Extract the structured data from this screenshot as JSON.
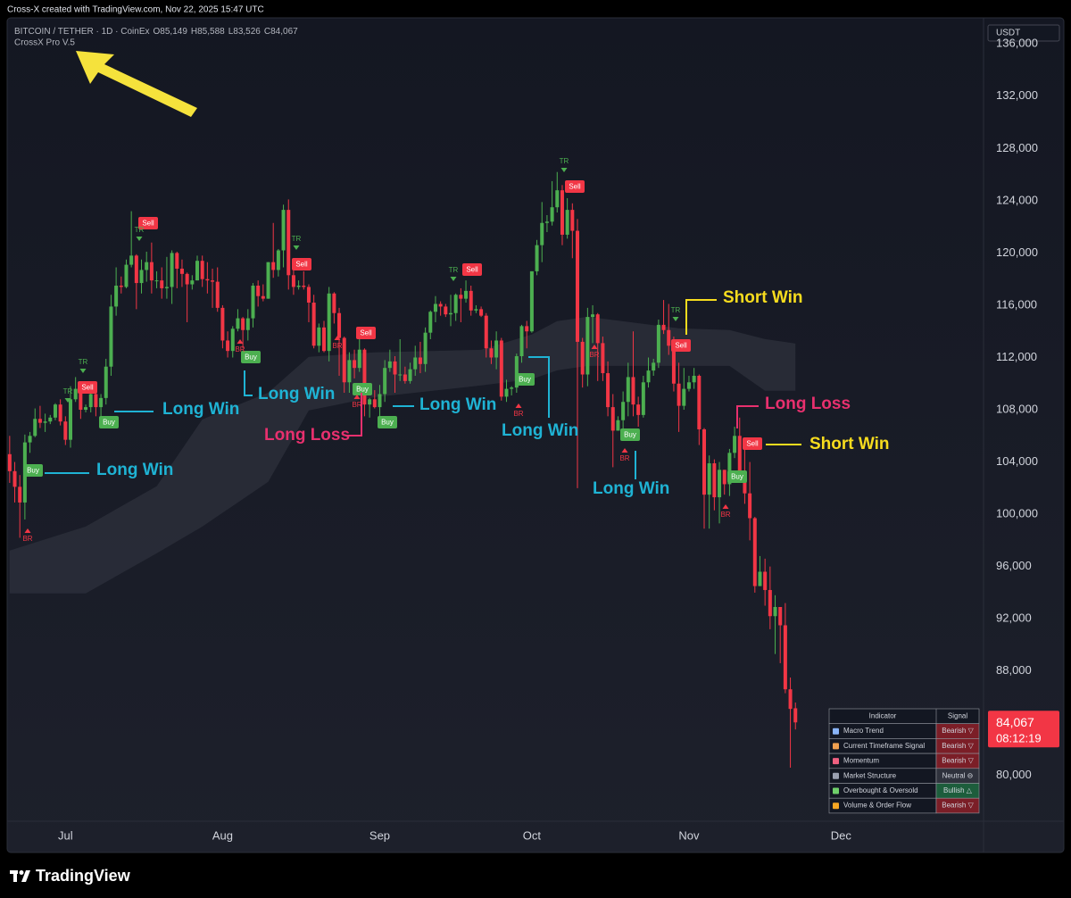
{
  "top_bar": "Cross-X created with TradingView.com, Nov 22, 2025 15:47 UTC",
  "header": {
    "symbol": "BITCOIN / TETHER · 1D · CoinEx",
    "ohlc": [
      {
        "key": "O",
        "value": "85,149"
      },
      {
        "key": "H",
        "value": "85,588"
      },
      {
        "key": "L",
        "value": "83,526"
      },
      {
        "key": "C",
        "value": "84,067"
      }
    ],
    "indicator": "CrossX Pro V.5"
  },
  "chart_data": {
    "type": "candlestick",
    "currency": "USDT",
    "up_color": "#4caf50",
    "down_color": "#f23645",
    "grid": false,
    "ylim": [
      76500,
      138000
    ],
    "yticks": [
      {
        "value": 80000,
        "label": "80,000"
      },
      {
        "value": 84000,
        "label": "84,000"
      },
      {
        "value": 88000,
        "label": "88,000"
      },
      {
        "value": 92000,
        "label": "92,000"
      },
      {
        "value": 96000,
        "label": "96,000"
      },
      {
        "value": 100000,
        "label": "100,000"
      },
      {
        "value": 104000,
        "label": "104,000"
      },
      {
        "value": 108000,
        "label": "108,000"
      },
      {
        "value": 112000,
        "label": "112,000"
      },
      {
        "value": 116000,
        "label": "116,000"
      },
      {
        "value": 120000,
        "label": "120,000"
      },
      {
        "value": 124000,
        "label": "124,000"
      },
      {
        "value": 128000,
        "label": "128,000"
      },
      {
        "value": 132000,
        "label": "132,000"
      },
      {
        "value": 136000,
        "label": "136,000"
      }
    ],
    "categories": [
      null,
      null,
      null,
      null,
      null,
      null,
      null,
      null,
      null,
      null,
      null,
      "Jul",
      null,
      null,
      null,
      null,
      null,
      null,
      null,
      null,
      null,
      null,
      null,
      null,
      null,
      null,
      null,
      null,
      null,
      null,
      null,
      null,
      null,
      null,
      null,
      null,
      null,
      null,
      null,
      null,
      null,
      null,
      "Aug",
      null,
      null,
      null,
      null,
      null,
      null,
      null,
      null,
      null,
      null,
      null,
      null,
      null,
      null,
      null,
      null,
      null,
      null,
      null,
      null,
      null,
      null,
      null,
      null,
      null,
      null,
      null,
      null,
      null,
      null,
      "Sep",
      null,
      null,
      null,
      null,
      null,
      null,
      null,
      null,
      null,
      null,
      null,
      null,
      null,
      null,
      null,
      null,
      null,
      null,
      null,
      null,
      null,
      null,
      null,
      null,
      null,
      null,
      null,
      null,
      null,
      "Oct",
      null,
      null,
      null,
      null,
      null,
      null,
      null,
      null,
      null,
      null,
      null,
      null,
      null,
      null,
      null,
      null,
      null,
      null,
      null,
      null,
      null,
      null,
      null,
      null,
      null,
      null,
      null,
      null,
      null,
      null,
      "Nov",
      null,
      null,
      null,
      null,
      null,
      null,
      null,
      null,
      null,
      null,
      null,
      null,
      null,
      null,
      null,
      null,
      null,
      null,
      null,
      null,
      null,
      null,
      null,
      null,
      null,
      null,
      null,
      null,
      null,
      "Dec"
    ],
    "open": [
      104600,
      103300,
      102100,
      100900,
      105500,
      106000,
      107300,
      107000,
      107100,
      107400,
      108400,
      107100,
      105700,
      108800,
      109600,
      108000,
      108200,
      109200,
      108200,
      108900,
      111300,
      115900,
      117500,
      117400,
      119100,
      119800,
      117700,
      118700,
      119300,
      117900,
      117900,
      117300,
      117400,
      120000,
      118800,
      118400,
      117600,
      117900,
      119400,
      118000,
      117900,
      117800,
      115800,
      113300,
      112500,
      114200,
      115000,
      114100,
      115000,
      117500,
      116700,
      116500,
      119300,
      118700,
      120200,
      123300,
      118300,
      117400,
      117500,
      117400,
      116200,
      112900,
      114300,
      112500,
      116900,
      115400,
      113500,
      110100,
      111800,
      111200,
      112600,
      108400,
      108800,
      108200,
      109200,
      111200,
      111700,
      110700,
      110700,
      110200,
      111100,
      112000,
      111500,
      113900,
      115500,
      116100,
      115900,
      115300,
      115400,
      116800,
      116500,
      117100,
      115600,
      115700,
      115200,
      112700,
      112000,
      113300,
      109000,
      109600,
      109700,
      112100,
      114400,
      114000,
      118600,
      120600,
      122300,
      122400,
      123500,
      124800,
      121400,
      123300,
      121700,
      113200,
      110700,
      115100,
      115300,
      113100,
      110800,
      108200,
      106400,
      107200,
      108600,
      110500,
      108400,
      107600,
      110100,
      111000,
      111600,
      114500,
      114100,
      112900,
      110000,
      108300,
      109600,
      110100,
      110600,
      106500,
      101500,
      103900,
      101300,
      103400,
      102300,
      104700,
      106000,
      103000,
      101600,
      99700,
      94500,
      95600,
      94200,
      92200,
      92900,
      91500,
      86600,
      85149,
      null,
      null,
      null,
      null,
      null,
      null,
      null,
      null,
      null
    ],
    "high": [
      106000,
      104000,
      103000,
      106100,
      106300,
      108100,
      108300,
      107700,
      107600,
      108500,
      108800,
      107500,
      109800,
      110500,
      109800,
      108400,
      109700,
      109700,
      109200,
      111900,
      116800,
      118900,
      118200,
      119500,
      123200,
      119900,
      119500,
      120100,
      120800,
      118600,
      118900,
      119700,
      120200,
      120100,
      119500,
      118500,
      118300,
      119800,
      119800,
      119300,
      118800,
      118900,
      116000,
      114000,
      114400,
      115700,
      115100,
      115700,
      117700,
      117900,
      117600,
      119300,
      122300,
      120300,
      123700,
      124100,
      119200,
      117900,
      118600,
      117600,
      116800,
      114600,
      114800,
      117400,
      117000,
      115800,
      113600,
      112400,
      112600,
      113500,
      112700,
      108900,
      109500,
      109900,
      111800,
      112600,
      112100,
      113400,
      111300,
      111600,
      112900,
      113200,
      114300,
      115600,
      116700,
      116300,
      116100,
      116800,
      116900,
      117300,
      117900,
      117500,
      116000,
      115900,
      115400,
      113300,
      114000,
      113500,
      110300,
      109800,
      112300,
      114500,
      114800,
      118600,
      121000,
      123900,
      122900,
      125500,
      126200,
      125200,
      124200,
      123800,
      122600,
      113500,
      115800,
      116000,
      115400,
      113600,
      111700,
      109200,
      107500,
      109400,
      111600,
      114000,
      109000,
      110600,
      112000,
      111900,
      114900,
      116400,
      116100,
      113600,
      111600,
      111200,
      110600,
      111200,
      110700,
      106600,
      104500,
      104200,
      104000,
      103400,
      105000,
      106700,
      107400,
      105300,
      104000,
      99800,
      96800,
      96600,
      96000,
      93800,
      92900,
      93200,
      87500,
      85588,
      null,
      null,
      null,
      null,
      null,
      null,
      null,
      null,
      null
    ],
    "low": [
      102400,
      100900,
      98200,
      99600,
      104700,
      105900,
      106600,
      106300,
      106900,
      107200,
      106800,
      105300,
      105100,
      108600,
      107300,
      107800,
      107800,
      107500,
      107500,
      108400,
      110600,
      115200,
      116900,
      117300,
      118900,
      115700,
      116900,
      117800,
      116900,
      117300,
      116500,
      116500,
      116100,
      117300,
      117400,
      114700,
      117200,
      117900,
      117400,
      116900,
      115800,
      115500,
      112700,
      112000,
      112000,
      114000,
      112700,
      113300,
      114300,
      115900,
      116300,
      116500,
      118100,
      118200,
      118900,
      117200,
      116800,
      117200,
      117200,
      114700,
      112700,
      112400,
      112400,
      111700,
      114600,
      110600,
      109300,
      109300,
      110400,
      110900,
      107500,
      107400,
      108100,
      107300,
      108600,
      110900,
      109300,
      110200,
      110000,
      110000,
      110600,
      110800,
      110900,
      113400,
      114700,
      115200,
      115100,
      114400,
      114800,
      114700,
      116200,
      115200,
      115400,
      115100,
      112000,
      111500,
      111100,
      108700,
      108600,
      109100,
      109300,
      111600,
      112700,
      113900,
      118300,
      119300,
      121600,
      122100,
      123100,
      120600,
      121100,
      119600,
      102000,
      109700,
      109800,
      113100,
      110200,
      110200,
      107500,
      103600,
      106400,
      106100,
      107500,
      107500,
      106700,
      107400,
      109700,
      110600,
      111200,
      113800,
      112200,
      109400,
      106300,
      108000,
      109400,
      109600,
      105300,
      98900,
      98900,
      100300,
      99300,
      101500,
      101400,
      104300,
      102500,
      100800,
      98000,
      94000,
      94500,
      93000,
      91200,
      89300,
      88600,
      86300,
      80600,
      83526,
      null,
      null,
      null,
      null,
      null,
      null,
      null,
      null,
      null
    ],
    "close": [
      103300,
      102100,
      100900,
      105500,
      106000,
      107300,
      107000,
      107100,
      107400,
      108400,
      107100,
      105700,
      108800,
      109600,
      108000,
      108200,
      109200,
      108200,
      108900,
      111300,
      115900,
      117500,
      117400,
      119100,
      119800,
      117700,
      118700,
      119300,
      117900,
      117900,
      117300,
      117400,
      120000,
      118800,
      118400,
      117600,
      117900,
      119400,
      118000,
      117900,
      117800,
      115800,
      113300,
      112500,
      114200,
      115000,
      114100,
      115000,
      117500,
      116700,
      116500,
      119300,
      118700,
      120200,
      123300,
      118300,
      117400,
      117500,
      117400,
      116200,
      112900,
      114300,
      112500,
      116900,
      115400,
      113500,
      110100,
      111800,
      111200,
      112600,
      108400,
      108800,
      108200,
      109200,
      111200,
      111700,
      110700,
      110700,
      110200,
      111100,
      112000,
      111500,
      113900,
      115500,
      116100,
      115900,
      115300,
      115400,
      116800,
      116500,
      117100,
      115600,
      115700,
      115200,
      112700,
      112000,
      113300,
      109000,
      109600,
      109700,
      112100,
      114400,
      114000,
      118600,
      120600,
      122300,
      122400,
      123500,
      124800,
      121400,
      123300,
      121700,
      113200,
      110700,
      115100,
      115300,
      113100,
      110800,
      108200,
      106400,
      107200,
      108600,
      110500,
      108400,
      107600,
      110100,
      111000,
      111600,
      114500,
      114100,
      112900,
      110000,
      108300,
      109600,
      110100,
      110600,
      106500,
      101500,
      103900,
      101300,
      103400,
      102300,
      104700,
      106000,
      103000,
      101600,
      99700,
      94500,
      95600,
      94200,
      92200,
      92900,
      91500,
      86600,
      85100,
      84067,
      null,
      null,
      null,
      null,
      null,
      null,
      null,
      null,
      null
    ],
    "cloud": {
      "color": "#2a2e39",
      "x": [
        0,
        15,
        29,
        38,
        51,
        59,
        72,
        93,
        103,
        108,
        114,
        132,
        142,
        149,
        155
      ],
      "upper": [
        97220,
        99060,
        102140,
        107260,
        109310,
        112050,
        112390,
        112590,
        113760,
        114780,
        115120,
        114230,
        114100,
        113410,
        113070
      ],
      "lower": [
        93940,
        93940,
        97010,
        99060,
        102480,
        107950,
        108970,
        109860,
        110340,
        111020,
        111360,
        111360,
        111360,
        109450,
        109450
      ]
    },
    "last_price": {
      "value": 84067,
      "label": "84,067"
    },
    "countdown": "08:12:19",
    "signals": [
      "Buy",
      "Buy",
      "Buy",
      "Buy",
      "Buy",
      "Buy",
      "Buy",
      "Buy",
      "Sell",
      "Sell",
      "Sell",
      "Sell",
      "Sell",
      "Sell",
      "Sell",
      "Sell",
      "TR",
      "TR",
      "TR",
      "TR",
      "TR",
      "TR",
      "TR",
      "BR",
      "BR",
      "BR",
      "BR",
      "BR",
      "BR",
      "BR",
      "BR"
    ],
    "annotations": [
      {
        "text": "Long Win",
        "color": "#1fb3d4"
      },
      {
        "text": "Long Win",
        "color": "#1fb3d4"
      },
      {
        "text": "Long Win",
        "color": "#1fb3d4"
      },
      {
        "text": "Long Loss",
        "color": "#e8306e"
      },
      {
        "text": "Long Win",
        "color": "#1fb3d4"
      },
      {
        "text": "Long Win",
        "color": "#1fb3d4"
      },
      {
        "text": "Long Win",
        "color": "#1fb3d4"
      },
      {
        "text": "Short Win",
        "color": "#f7dc1e"
      },
      {
        "text": "Long Loss",
        "color": "#e8306e"
      },
      {
        "text": "Short Win",
        "color": "#f7dc1e"
      }
    ]
  },
  "signal_table": {
    "header": [
      "Indicator",
      "Signal"
    ],
    "rows": [
      [
        "Macro Trend",
        "Bearish ▽"
      ],
      [
        "Current Timeframe Signal",
        "Bearish ▽"
      ],
      [
        "Momentum",
        "Bearish ▽"
      ],
      [
        "Market Structure",
        "Neutral ⊖"
      ],
      [
        "Overbought & Oversold",
        "Bullish △"
      ],
      [
        "Volume & Order Flow",
        "Bearish ▽"
      ]
    ]
  },
  "footer": {
    "brand": "TradingView"
  }
}
